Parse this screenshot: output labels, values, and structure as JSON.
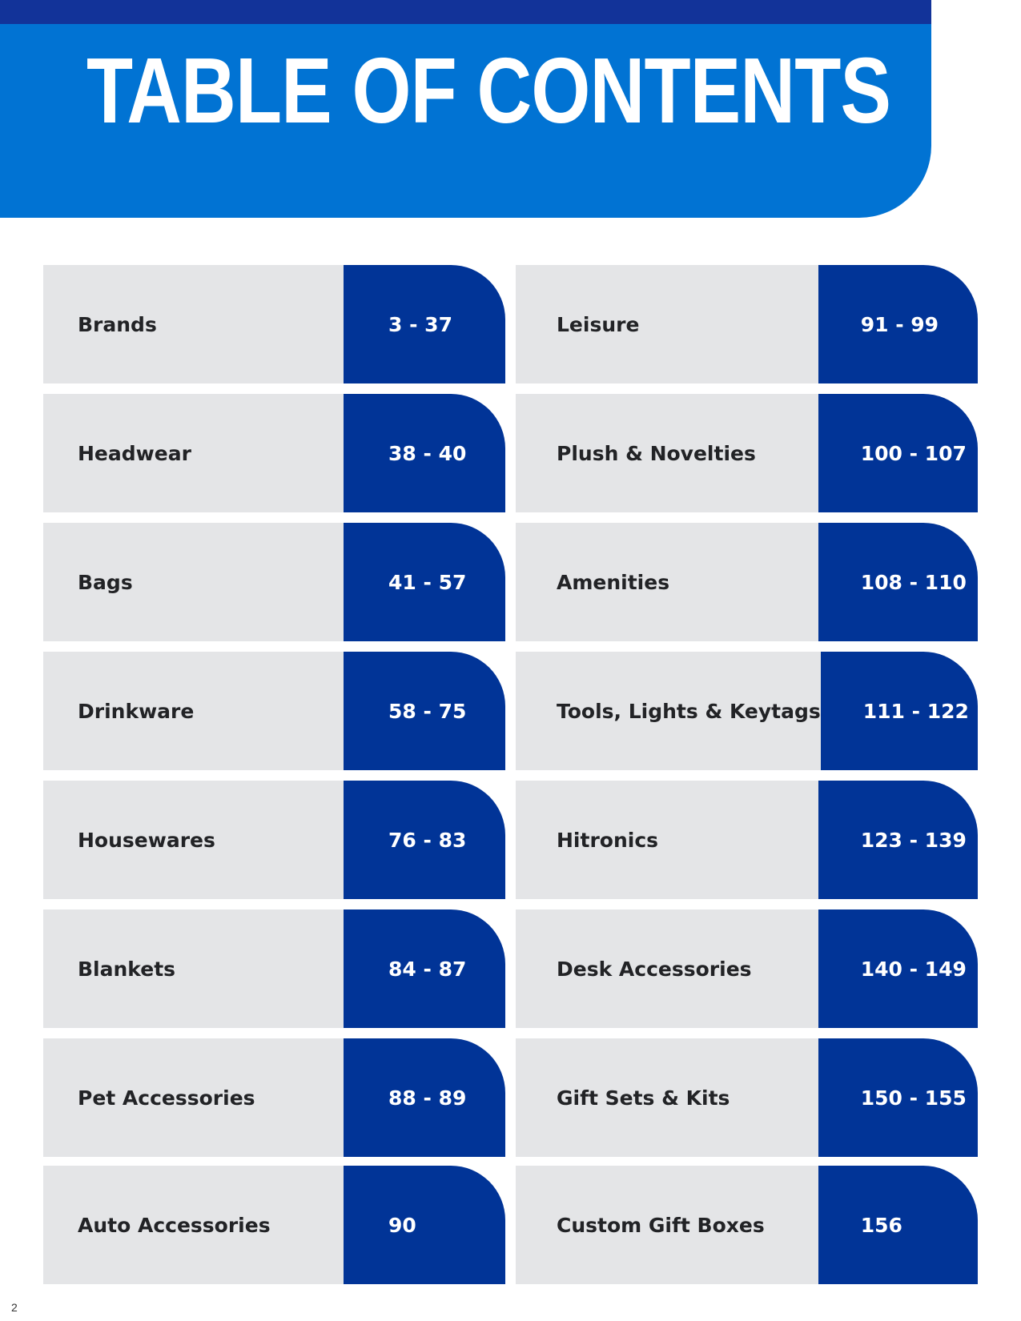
{
  "header": {
    "title": "TABLE OF CONTENTS"
  },
  "colors": {
    "header_blue": "#0173d3",
    "top_strip_navy": "#123399",
    "pages_blue": "#013497",
    "row_gray": "#e4e5e7"
  },
  "toc": {
    "left": [
      {
        "label": "Brands",
        "pages": "3 - 37"
      },
      {
        "label": "Headwear",
        "pages": "38 - 40"
      },
      {
        "label": "Bags",
        "pages": "41 - 57"
      },
      {
        "label": "Drinkware",
        "pages": "58 - 75"
      },
      {
        "label": "Housewares",
        "pages": "76 - 83"
      },
      {
        "label": "Blankets",
        "pages": "84 - 87"
      },
      {
        "label": "Pet Accessories",
        "pages": "88 - 89"
      },
      {
        "label": "Auto Accessories",
        "pages": "90"
      }
    ],
    "right": [
      {
        "label": "Leisure",
        "pages": "91 - 99"
      },
      {
        "label": "Plush & Novelties",
        "pages": "100 - 107"
      },
      {
        "label": "Amenities",
        "pages": "108 - 110"
      },
      {
        "label": "Tools, Lights & Keytags",
        "pages": "111 - 122"
      },
      {
        "label": "Hitronics",
        "pages": "123 - 139"
      },
      {
        "label": "Desk Accessories",
        "pages": "140 - 149"
      },
      {
        "label": "Gift Sets & Kits",
        "pages": "150 - 155"
      },
      {
        "label": "Custom Gift Boxes",
        "pages": "156"
      }
    ]
  },
  "footer": {
    "page_number": "2"
  }
}
